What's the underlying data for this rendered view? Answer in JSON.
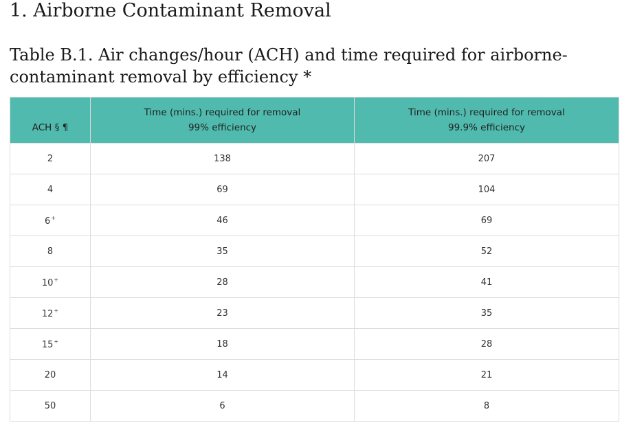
{
  "heading": "1. Airborne Contaminant Removal",
  "caption": "Table B.1. Air changes/hour (ACH) and time required for airborne-contaminant removal by efficiency *",
  "table": {
    "headers": [
      {
        "lines": [
          "ACH § ¶"
        ]
      },
      {
        "lines": [
          "Time (mins.) required for removal",
          "99% efficiency"
        ]
      },
      {
        "lines": [
          "Time (mins.) required for removal",
          "99.9% efficiency"
        ]
      }
    ],
    "rows": [
      {
        "ach": "2",
        "mark": "",
        "t99": "138",
        "t999": "207"
      },
      {
        "ach": "4",
        "mark": "",
        "t99": "69",
        "t999": "104"
      },
      {
        "ach": "6",
        "mark": "+",
        "t99": "46",
        "t999": "69"
      },
      {
        "ach": "8",
        "mark": "",
        "t99": "35",
        "t999": "52"
      },
      {
        "ach": "10",
        "mark": "+",
        "t99": "28",
        "t999": "41"
      },
      {
        "ach": "12",
        "mark": "+",
        "t99": "23",
        "t999": "35"
      },
      {
        "ach": "15",
        "mark": "+",
        "t99": "18",
        "t999": "28"
      },
      {
        "ach": "20",
        "mark": "",
        "t99": "14",
        "t999": "21"
      },
      {
        "ach": "50",
        "mark": "",
        "t99": "6",
        "t999": "8"
      }
    ]
  },
  "colors": {
    "header_bg": "#4fbaad",
    "border": "#dcdcdc"
  }
}
